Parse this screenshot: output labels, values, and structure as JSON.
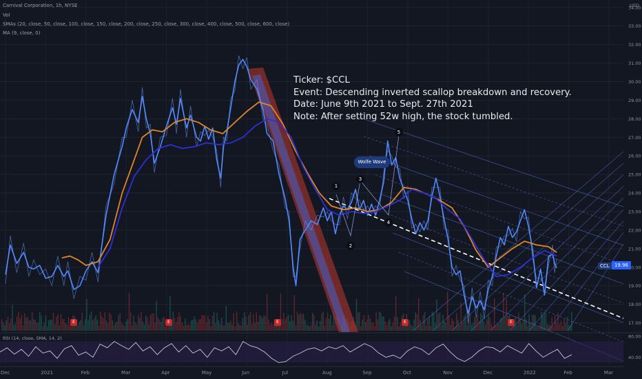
{
  "header": {
    "symbol_line": "Carnival Corporation, 1h, NYSE",
    "vol_label": "Vol",
    "smas_label": "SMAs (20, close, 50, close, 100, close, 150, close, 200, close, 250, close, 300, close, 400, close, 500, close, 600, close)",
    "ma_label": "MA (9, close, 0)"
  },
  "note": {
    "line1": "Ticker: $CCL",
    "line2": "Event: Descending inverted scallop breakdown and recovery.",
    "line3": "Date: June 9th 2021 to Sept. 27th 2021",
    "line4": "Note: After setting 52w high, the stock tumbled."
  },
  "annotations": {
    "wolfe_label": "Wolfe Wave",
    "wave_points": [
      "1",
      "2",
      "3",
      "4",
      "5"
    ],
    "earnings_flag": "E",
    "price_tag_symbol": "CCL",
    "price_tag_value": "19.96"
  },
  "chart_data": [
    {
      "type": "line",
      "currency_label": "USD",
      "y_ticks": [
        "34.00",
        "33.00",
        "32.00",
        "31.00",
        "30.00",
        "29.00",
        "28.00",
        "27.00",
        "26.00",
        "25.00",
        "24.00",
        "23.00",
        "22.00",
        "21.00",
        "20.00",
        "19.00",
        "18.00",
        "17.00"
      ],
      "x_ticks": [
        "Dec",
        "2021",
        "Feb",
        "Mar",
        "Apr",
        "May",
        "Jun",
        "Jul",
        "Aug",
        "Sep",
        "Oct",
        "Nov",
        "Dec",
        "2022",
        "Feb",
        "Mar"
      ],
      "ylim": [
        16.5,
        34.4
      ],
      "price": [
        [
          0,
          19.6
        ],
        [
          0.12,
          21.2
        ],
        [
          0.28,
          20.2
        ],
        [
          0.45,
          20.8
        ],
        [
          0.58,
          20.0
        ],
        [
          0.7,
          19.9
        ],
        [
          0.85,
          20.1
        ],
        [
          1.0,
          19.4
        ],
        [
          1.15,
          19.5
        ],
        [
          1.3,
          20.1
        ],
        [
          1.45,
          19.5
        ],
        [
          1.55,
          19.8
        ],
        [
          1.7,
          18.8
        ],
        [
          1.85,
          19.0
        ],
        [
          2.0,
          19.8
        ],
        [
          2.15,
          20.3
        ],
        [
          2.3,
          19.7
        ],
        [
          2.5,
          22.8
        ],
        [
          2.7,
          25.0
        ],
        [
          2.9,
          26.5
        ],
        [
          3.0,
          27.5
        ],
        [
          3.15,
          28.5
        ],
        [
          3.3,
          27.8
        ],
        [
          3.4,
          29.2
        ],
        [
          3.5,
          28.0
        ],
        [
          3.6,
          27.2
        ],
        [
          3.7,
          25.6
        ],
        [
          3.85,
          26.5
        ],
        [
          4.0,
          27.6
        ],
        [
          4.15,
          28.6
        ],
        [
          4.25,
          27.7
        ],
        [
          4.35,
          29.1
        ],
        [
          4.5,
          27.5
        ],
        [
          4.6,
          28.2
        ],
        [
          4.75,
          27.0
        ],
        [
          4.85,
          26.8
        ],
        [
          4.95,
          27.6
        ],
        [
          5.05,
          26.9
        ],
        [
          5.15,
          27.5
        ],
        [
          5.25,
          25.8
        ],
        [
          5.35,
          24.8
        ],
        [
          5.42,
          26.5
        ],
        [
          5.5,
          27.3
        ],
        [
          5.6,
          28.6
        ],
        [
          5.7,
          30.0
        ],
        [
          5.8,
          30.9
        ],
        [
          5.9,
          31.2
        ],
        [
          6.0,
          30.8
        ],
        [
          6.1,
          30.1
        ],
        [
          6.25,
          29.6
        ],
        [
          6.4,
          28.5
        ],
        [
          6.5,
          27.2
        ],
        [
          6.65,
          26.8
        ],
        [
          6.8,
          25.0
        ],
        [
          6.95,
          23.7
        ],
        [
          7.05,
          22.5
        ],
        [
          7.15,
          20.0
        ],
        [
          7.22,
          19.0
        ],
        [
          7.32,
          21.5
        ],
        [
          7.45,
          22.0
        ],
        [
          7.6,
          22.5
        ],
        [
          7.75,
          22.3
        ],
        [
          7.9,
          23.2
        ],
        [
          8.0,
          22.5
        ],
        [
          8.1,
          23.0
        ],
        [
          8.2,
          21.8
        ],
        [
          8.3,
          22.8
        ],
        [
          8.4,
          23.3
        ],
        [
          8.5,
          23.1
        ],
        [
          8.6,
          23.5
        ],
        [
          8.7,
          24.2
        ],
        [
          8.8,
          23.1
        ],
        [
          8.9,
          23.6
        ],
        [
          9.0,
          22.8
        ],
        [
          9.1,
          23.4
        ],
        [
          9.2,
          22.8
        ],
        [
          9.3,
          23.6
        ],
        [
          9.4,
          24.6
        ],
        [
          9.5,
          26.8
        ],
        [
          9.6,
          25.5
        ],
        [
          9.7,
          25.9
        ],
        [
          9.8,
          24.8
        ],
        [
          9.9,
          24.2
        ],
        [
          10.0,
          23.6
        ],
        [
          10.1,
          22.6
        ],
        [
          10.2,
          21.8
        ],
        [
          10.3,
          22.4
        ],
        [
          10.4,
          22.0
        ],
        [
          10.5,
          22.5
        ],
        [
          10.6,
          23.8
        ],
        [
          10.7,
          24.8
        ],
        [
          10.8,
          23.8
        ],
        [
          10.9,
          22.6
        ],
        [
          11.0,
          21.5
        ],
        [
          11.1,
          20.0
        ],
        [
          11.2,
          19.6
        ],
        [
          11.3,
          19.8
        ],
        [
          11.4,
          18.5
        ],
        [
          11.5,
          17.5
        ],
        [
          11.6,
          18.4
        ],
        [
          11.7,
          17.8
        ],
        [
          11.8,
          18.2
        ],
        [
          11.9,
          17.7
        ],
        [
          12.0,
          18.8
        ],
        [
          12.1,
          19.5
        ],
        [
          12.2,
          20.6
        ],
        [
          12.3,
          21.6
        ],
        [
          12.4,
          21.2
        ],
        [
          12.5,
          22.2
        ],
        [
          12.6,
          21.6
        ],
        [
          12.7,
          21.9
        ],
        [
          12.8,
          22.5
        ],
        [
          12.9,
          23.1
        ],
        [
          13.0,
          22.2
        ],
        [
          13.1,
          21.0
        ],
        [
          13.2,
          18.9
        ],
        [
          13.3,
          19.9
        ],
        [
          13.4,
          18.5
        ],
        [
          13.5,
          20.6
        ],
        [
          13.6,
          20.7
        ],
        [
          13.65,
          20.2
        ],
        [
          13.7,
          19.96
        ]
      ],
      "sma_orange": [
        [
          1.4,
          20.5
        ],
        [
          1.6,
          20.6
        ],
        [
          1.8,
          20.4
        ],
        [
          2.0,
          20.1
        ],
        [
          2.3,
          20.3
        ],
        [
          2.6,
          21.5
        ],
        [
          2.9,
          24.0
        ],
        [
          3.15,
          25.5
        ],
        [
          3.4,
          27.0
        ],
        [
          3.65,
          27.4
        ],
        [
          3.9,
          27.3
        ],
        [
          4.2,
          27.8
        ],
        [
          4.5,
          28.0
        ],
        [
          4.8,
          27.8
        ],
        [
          5.1,
          27.4
        ],
        [
          5.4,
          27.2
        ],
        [
          5.7,
          27.8
        ],
        [
          6.0,
          28.4
        ],
        [
          6.3,
          28.9
        ],
        [
          6.6,
          28.7
        ],
        [
          6.9,
          27.7
        ],
        [
          7.2,
          26.3
        ],
        [
          7.5,
          25.1
        ],
        [
          7.8,
          24.0
        ],
        [
          8.1,
          23.3
        ],
        [
          8.4,
          23.1
        ],
        [
          8.7,
          23.2
        ],
        [
          9.0,
          23.0
        ],
        [
          9.3,
          23.1
        ],
        [
          9.6,
          23.5
        ],
        [
          9.9,
          24.3
        ],
        [
          10.2,
          24.2
        ],
        [
          10.5,
          23.9
        ],
        [
          10.8,
          23.6
        ],
        [
          11.1,
          23.2
        ],
        [
          11.4,
          22.2
        ],
        [
          11.7,
          20.9
        ],
        [
          12.0,
          20.0
        ],
        [
          12.3,
          20.5
        ],
        [
          12.6,
          21.0
        ],
        [
          12.9,
          21.4
        ],
        [
          13.2,
          21.2
        ],
        [
          13.5,
          21.1
        ],
        [
          13.7,
          20.8
        ]
      ],
      "ma_blue": [
        [
          2.3,
          20.0
        ],
        [
          2.6,
          21.0
        ],
        [
          2.9,
          23.2
        ],
        [
          3.2,
          24.9
        ],
        [
          3.5,
          25.8
        ],
        [
          3.8,
          26.4
        ],
        [
          4.1,
          26.6
        ],
        [
          4.4,
          26.4
        ],
        [
          4.7,
          26.5
        ],
        [
          5.0,
          26.7
        ],
        [
          5.3,
          26.6
        ],
        [
          5.6,
          26.7
        ],
        [
          5.9,
          27.0
        ],
        [
          6.2,
          27.6
        ],
        [
          6.5,
          28.0
        ],
        [
          6.8,
          27.8
        ],
        [
          7.1,
          27.0
        ],
        [
          7.4,
          25.4
        ],
        [
          7.7,
          24.2
        ],
        [
          8.0,
          23.1
        ],
        [
          8.3,
          22.8
        ],
        [
          8.6,
          23.0
        ],
        [
          8.9,
          22.9
        ],
        [
          9.2,
          23.0
        ],
        [
          9.5,
          23.3
        ],
        [
          9.8,
          23.6
        ],
        [
          10.1,
          24.2
        ],
        [
          10.4,
          24.0
        ],
        [
          10.7,
          23.7
        ],
        [
          11.0,
          23.1
        ],
        [
          11.3,
          22.6
        ],
        [
          11.6,
          21.5
        ],
        [
          11.9,
          20.4
        ],
        [
          12.2,
          19.5
        ],
        [
          12.5,
          19.6
        ],
        [
          12.8,
          20.0
        ],
        [
          13.1,
          20.5
        ],
        [
          13.4,
          20.9
        ],
        [
          13.7,
          20.6
        ]
      ]
    },
    {
      "type": "line",
      "name": "RSI (14, close, SMA, 14, 2)",
      "y_ticks": [
        "80.00",
        "40.00"
      ],
      "ylim": [
        25,
        85
      ],
      "band": [
        30,
        70
      ],
      "values": [
        50,
        58,
        46,
        55,
        42,
        60,
        48,
        52,
        38,
        56,
        62,
        44,
        50,
        40,
        65,
        58,
        70,
        62,
        55,
        68,
        52,
        60,
        45,
        58,
        66,
        50,
        62,
        48,
        55,
        40,
        58,
        52,
        60,
        45,
        70,
        62,
        58,
        50,
        38,
        30,
        32,
        42,
        48,
        55,
        58,
        52,
        60,
        56,
        62,
        50,
        58,
        66,
        60,
        48,
        40,
        44,
        38,
        52,
        60,
        55,
        45,
        58,
        65,
        50,
        38,
        32,
        40,
        52,
        60,
        58,
        50,
        62,
        55,
        48,
        66,
        52,
        40,
        48,
        55,
        38,
        45
      ]
    }
  ]
}
